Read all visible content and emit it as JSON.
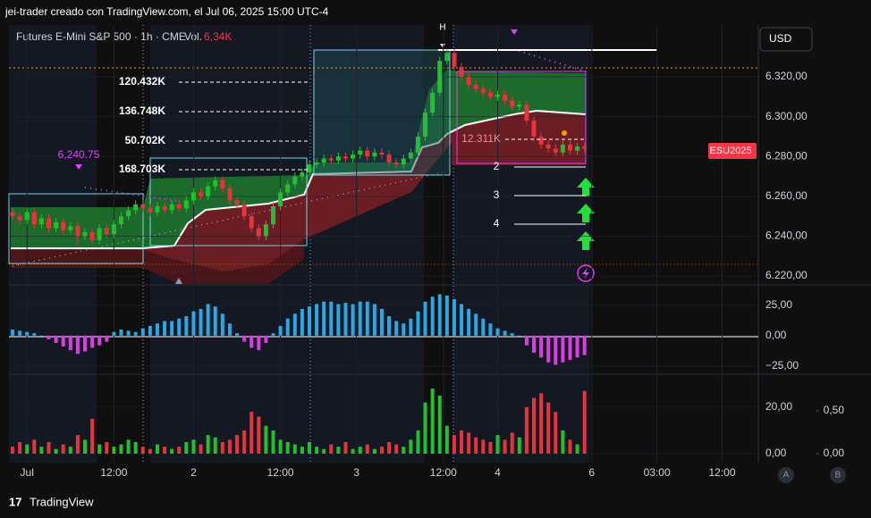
{
  "header": {
    "credit": "jei-trader creado con TradingView.com, el Jul 06, 2025 15:00 UTC-4",
    "symbol": "Futures E-Mini S&P 500 · 1h · CME",
    "vol_label": "Vol.",
    "vol_value": "6,34K",
    "currency": "USD",
    "brand": "TradingView",
    "pane_a": "A",
    "pane_b": "B"
  },
  "annotations": [
    "120.432K",
    "136.748K",
    "50.702K",
    "168.703K",
    "12.311K",
    "6,240.75",
    "2",
    "3",
    "4",
    "H",
    "ESU2025"
  ],
  "chart_data": [
    {
      "type": "candlestick",
      "up_color": "#22c02e",
      "down_color": "#e8323c",
      "xlim": [
        -0.25,
        103
      ],
      "xticks": [
        {
          "value": 2,
          "label": "Jul"
        },
        {
          "value": 14,
          "label": "12:00"
        },
        {
          "value": 25,
          "label": "2"
        },
        {
          "value": 37,
          "label": "12:00"
        },
        {
          "value": 47.5,
          "label": "3"
        },
        {
          "value": 59.5,
          "label": "12:00"
        },
        {
          "value": 67,
          "label": "4"
        },
        {
          "value": 80,
          "label": "6"
        },
        {
          "value": 89,
          "label": "03:00"
        },
        {
          "value": 98,
          "label": "12:00"
        }
      ],
      "ylim": [
        6216,
        6346
      ],
      "yticks": [
        {
          "value": 6220,
          "label": "6.220,00"
        },
        {
          "value": 6240,
          "label": "6.240,00"
        },
        {
          "value": 6260,
          "label": "6.260,00"
        },
        {
          "value": 6280,
          "label": "6.280,00"
        },
        {
          "value": 6300,
          "label": "6.300,00"
        },
        {
          "value": 6320,
          "label": "6.320,00"
        }
      ],
      "x": [
        0,
        1,
        2,
        3,
        4,
        5,
        6,
        7,
        8,
        9,
        10,
        11,
        12,
        13,
        14,
        15,
        16,
        17,
        18,
        19,
        20,
        21,
        22,
        23,
        24,
        25,
        26,
        27,
        28,
        29,
        30,
        31,
        32,
        33,
        34,
        35,
        36,
        37,
        38,
        39,
        40,
        41,
        42,
        43,
        44,
        45,
        46,
        47,
        48,
        49,
        50,
        51,
        52,
        53,
        54,
        55,
        56,
        57,
        58,
        59,
        60,
        61,
        62,
        63,
        64,
        65,
        66,
        67,
        68,
        69,
        70,
        71,
        72,
        73,
        74,
        75,
        76,
        77,
        78,
        79
      ],
      "candles": [
        [
          6252,
          6254,
          6248,
          6250
        ],
        [
          6250,
          6252,
          6246,
          6248
        ],
        [
          6248,
          6254,
          6246,
          6252
        ],
        [
          6252,
          6254,
          6244,
          6246
        ],
        [
          6246,
          6251,
          6244,
          6249
        ],
        [
          6249,
          6251,
          6242,
          6244
        ],
        [
          6244,
          6249,
          6242,
          6247
        ],
        [
          6247,
          6249,
          6241,
          6243
        ],
        [
          6243,
          6247,
          6241,
          6245
        ],
        [
          6245,
          6247,
          6236,
          6240
        ],
        [
          6240,
          6244,
          6238,
          6242
        ],
        [
          6242,
          6244,
          6236,
          6238
        ],
        [
          6238,
          6246,
          6236,
          6244
        ],
        [
          6244,
          6246,
          6239,
          6241
        ],
        [
          6241,
          6248,
          6239,
          6246
        ],
        [
          6246,
          6252,
          6244,
          6250
        ],
        [
          6250,
          6255,
          6248,
          6253
        ],
        [
          6253,
          6258,
          6251,
          6256
        ],
        [
          6256,
          6258,
          6252,
          6254
        ],
        [
          6254,
          6256,
          6250,
          6252
        ],
        [
          6252,
          6257,
          6250,
          6255
        ],
        [
          6255,
          6257,
          6251,
          6253
        ],
        [
          6253,
          6258,
          6251,
          6256
        ],
        [
          6256,
          6258,
          6252,
          6254
        ],
        [
          6254,
          6260,
          6252,
          6258
        ],
        [
          6258,
          6264,
          6256,
          6262
        ],
        [
          6262,
          6264,
          6258,
          6260
        ],
        [
          6260,
          6267,
          6258,
          6265
        ],
        [
          6265,
          6270,
          6263,
          6268
        ],
        [
          6268,
          6270,
          6262,
          6264
        ],
        [
          6264,
          6266,
          6256,
          6258
        ],
        [
          6258,
          6260,
          6254,
          6256
        ],
        [
          6256,
          6258,
          6248,
          6250
        ],
        [
          6250,
          6252,
          6242,
          6244
        ],
        [
          6244,
          6246,
          6238,
          6240
        ],
        [
          6240,
          6248,
          6238,
          6246
        ],
        [
          6246,
          6257,
          6244,
          6255
        ],
        [
          6255,
          6264,
          6253,
          6262
        ],
        [
          6262,
          6268,
          6260,
          6266
        ],
        [
          6266,
          6272,
          6264,
          6270
        ],
        [
          6270,
          6274,
          6268,
          6272
        ],
        [
          6272,
          6278,
          6270,
          6276
        ],
        [
          6276,
          6279,
          6274,
          6277
        ],
        [
          6277,
          6281,
          6275,
          6279
        ],
        [
          6279,
          6281,
          6276,
          6278
        ],
        [
          6278,
          6282,
          6276,
          6280
        ],
        [
          6280,
          6282,
          6277,
          6279
        ],
        [
          6279,
          6283,
          6277,
          6281
        ],
        [
          6281,
          6285,
          6279,
          6283
        ],
        [
          6283,
          6285,
          6278,
          6280
        ],
        [
          6280,
          6284,
          6278,
          6282
        ],
        [
          6282,
          6284,
          6279,
          6281
        ],
        [
          6281,
          6283,
          6275,
          6277
        ],
        [
          6277,
          6279,
          6274,
          6276
        ],
        [
          6276,
          6281,
          6274,
          6279
        ],
        [
          6279,
          6284,
          6277,
          6282
        ],
        [
          6282,
          6292,
          6280,
          6290
        ],
        [
          6290,
          6304,
          6288,
          6302
        ],
        [
          6302,
          6314,
          6300,
          6312
        ],
        [
          6312,
          6330,
          6310,
          6328
        ],
        [
          6328,
          6334,
          6326,
          6332
        ],
        [
          6332,
          6334,
          6323,
          6325
        ],
        [
          6325,
          6327,
          6318,
          6320
        ],
        [
          6320,
          6322,
          6314,
          6316
        ],
        [
          6316,
          6318,
          6312,
          6314
        ],
        [
          6314,
          6316,
          6310,
          6312
        ],
        [
          6312,
          6314,
          6308,
          6310
        ],
        [
          6310,
          6313,
          6308,
          6311
        ],
        [
          6311,
          6313,
          6306,
          6308
        ],
        [
          6308,
          6310,
          6303,
          6305
        ],
        [
          6305,
          6308,
          6303,
          6306
        ],
        [
          6306,
          6308,
          6296,
          6298
        ],
        [
          6298,
          6300,
          6288,
          6290
        ],
        [
          6290,
          6292,
          6284,
          6286
        ],
        [
          6286,
          6288,
          6282,
          6284
        ],
        [
          6284,
          6286,
          6280,
          6282
        ],
        [
          6282,
          6288,
          6280,
          6286
        ],
        [
          6286,
          6288,
          6281,
          6283
        ],
        [
          6283,
          6287,
          6281,
          6285
        ],
        [
          6285,
          6287,
          6282,
          6284
        ]
      ]
    },
    {
      "type": "bar",
      "pos_color": "#2aa8e6",
      "neg_color": "#d83ee0",
      "ylim": [
        -31,
        41
      ],
      "yticks": [
        {
          "value": -25,
          "label": "−25,00"
        },
        {
          "value": 0,
          "label": "0,00"
        },
        {
          "value": 25,
          "label": "25,00"
        }
      ],
      "x": [
        0,
        1,
        2,
        3,
        4,
        5,
        6,
        7,
        8,
        9,
        10,
        11,
        12,
        13,
        14,
        15,
        16,
        17,
        18,
        19,
        20,
        21,
        22,
        23,
        24,
        25,
        26,
        27,
        28,
        29,
        30,
        31,
        32,
        33,
        34,
        35,
        36,
        37,
        38,
        39,
        40,
        41,
        42,
        43,
        44,
        45,
        46,
        47,
        48,
        49,
        50,
        51,
        52,
        53,
        54,
        55,
        56,
        57,
        58,
        59,
        60,
        61,
        62,
        63,
        64,
        65,
        66,
        67,
        68,
        69,
        70,
        71,
        72,
        73,
        74,
        75,
        76,
        77,
        78,
        79
      ],
      "values": [
        5,
        4,
        3,
        2,
        0,
        -3,
        -6,
        -9,
        -12,
        -15,
        -13,
        -10,
        -8,
        -5,
        3,
        5,
        4,
        3,
        6,
        8,
        10,
        12,
        12,
        14,
        16,
        20,
        22,
        26,
        24,
        18,
        10,
        2,
        -5,
        -10,
        -12,
        -6,
        2,
        8,
        14,
        18,
        22,
        24,
        26,
        28,
        28,
        26,
        27,
        26,
        28,
        28,
        26,
        22,
        16,
        12,
        10,
        14,
        20,
        28,
        32,
        34,
        33,
        30,
        26,
        22,
        18,
        14,
        10,
        6,
        4,
        2,
        0,
        -8,
        -14,
        -18,
        -22,
        -24,
        -22,
        -20,
        -18,
        -16
      ]
    },
    {
      "type": "bar",
      "ylim": [
        -2.7,
        33.8
      ],
      "yticks": [
        {
          "value": 0,
          "label": "0,00"
        },
        {
          "value": 20,
          "label": "20,00"
        }
      ],
      "y2lim": [
        -0.073,
        0.917
      ],
      "y2ticks": [
        {
          "value": 0,
          "label": "0,00"
        },
        {
          "value": 0.5,
          "label": "0,50"
        }
      ],
      "x": [
        0,
        1,
        2,
        3,
        4,
        5,
        6,
        7,
        8,
        9,
        10,
        11,
        12,
        13,
        14,
        15,
        16,
        17,
        18,
        19,
        20,
        21,
        22,
        23,
        24,
        25,
        26,
        27,
        28,
        29,
        30,
        31,
        32,
        33,
        34,
        35,
        36,
        37,
        38,
        39,
        40,
        41,
        42,
        43,
        44,
        45,
        46,
        47,
        48,
        49,
        50,
        51,
        52,
        53,
        54,
        55,
        56,
        57,
        58,
        59,
        60,
        61,
        62,
        63,
        64,
        65,
        66,
        67,
        68,
        69,
        70,
        71,
        72,
        73,
        74,
        75,
        76,
        77,
        78,
        79
      ],
      "values": [
        3,
        5,
        4,
        6,
        3,
        5,
        2,
        4,
        3,
        8,
        6,
        15,
        4,
        5,
        3,
        4,
        6,
        5,
        3,
        2,
        4,
        3,
        2,
        3,
        5,
        6,
        4,
        8,
        7,
        5,
        6,
        8,
        10,
        18,
        16,
        12,
        10,
        6,
        5,
        4,
        3,
        5,
        3,
        2,
        4,
        3,
        5,
        2,
        3,
        4,
        2,
        3,
        5,
        4,
        3,
        6,
        10,
        22,
        28,
        25,
        12,
        8,
        10,
        9,
        7,
        6,
        5,
        8,
        6,
        9,
        7,
        20,
        24,
        26,
        22,
        18,
        10,
        6,
        4,
        27
      ]
    }
  ]
}
